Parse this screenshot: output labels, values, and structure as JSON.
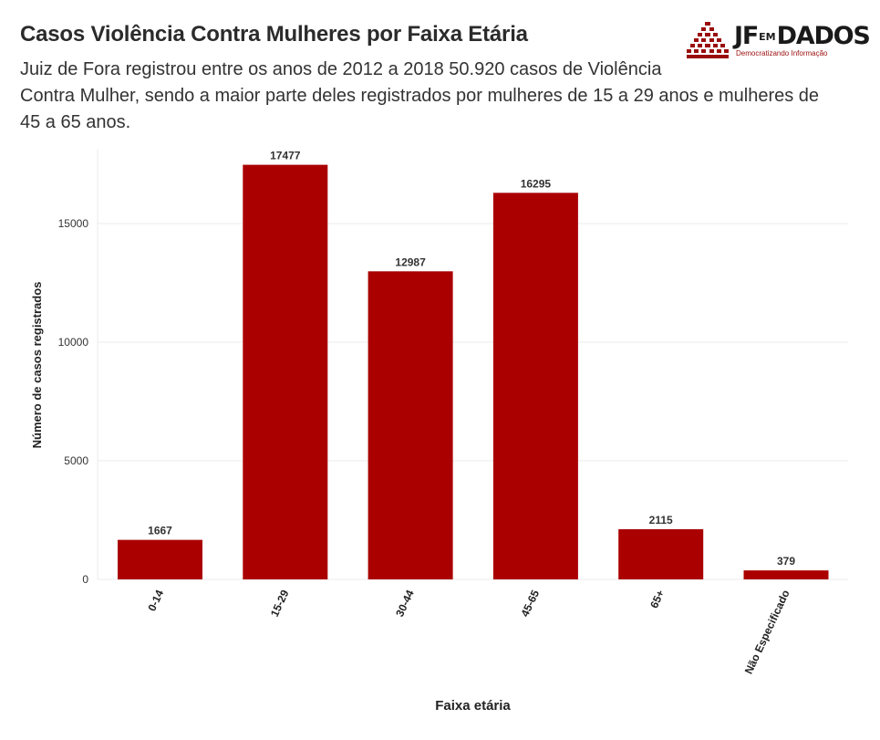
{
  "header": {
    "title": "Casos Violência Contra Mulheres por Faixa Etária",
    "subtitle_lines": [
      "Juiz de Fora registrou entre os anos de 2012 a 2018 50.920 casos de Violência",
      "Contra Mulher, sendo a maior parte deles registrados por mulheres de 15 a 29 anos e mulheres de",
      "45 a 65 anos."
    ]
  },
  "logo": {
    "brand_left": "JF",
    "brand_em": "EM",
    "brand_right": "DADOS",
    "tagline": "Democratizando Informação",
    "color": "#9a0d0d"
  },
  "chart_data": {
    "type": "bar",
    "categories": [
      "0-14",
      "15-29",
      "30-44",
      "45-65",
      "65+",
      "Não Especificado"
    ],
    "values": [
      1667,
      17477,
      12987,
      16295,
      2115,
      379
    ],
    "xlabel": "Faixa etária",
    "ylabel": "Número de casos registrados",
    "ylim": [
      0,
      18000
    ],
    "yticks": [
      0,
      5000,
      10000,
      15000
    ],
    "ytick_labels": [
      "0",
      "5000",
      "10000",
      "15000"
    ],
    "grid": true,
    "bar_color": "#aa0000",
    "data_labels": true
  }
}
